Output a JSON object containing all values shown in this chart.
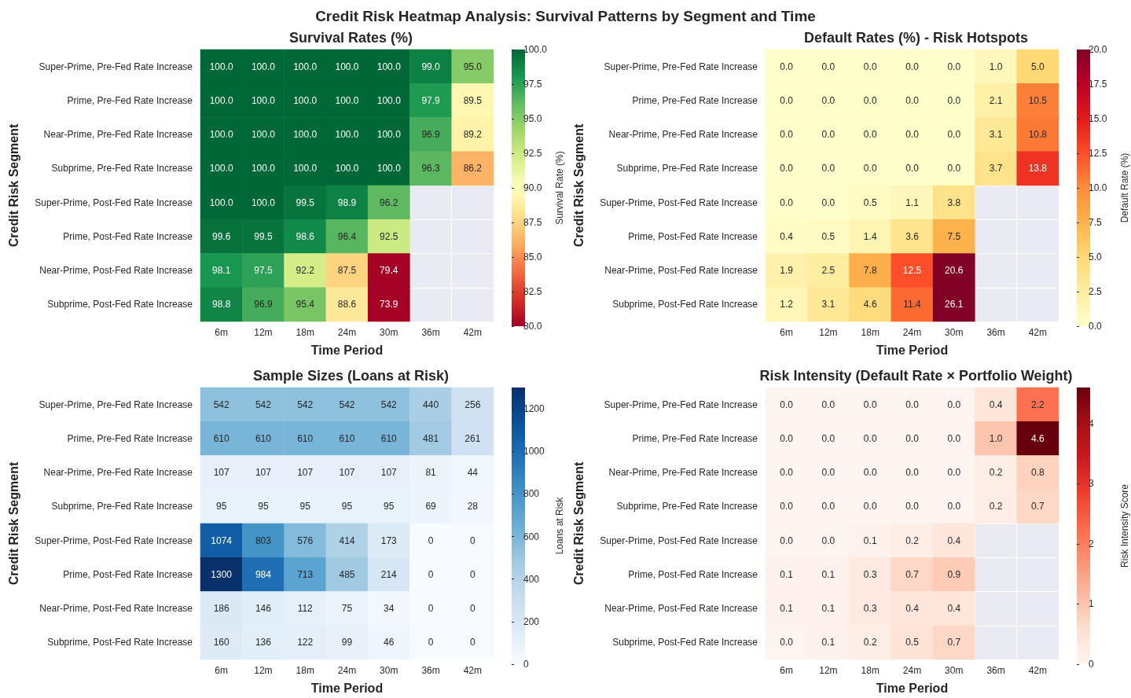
{
  "chart_data": [
    {
      "type": "heatmap",
      "title": "Survival Rates (%)",
      "annotations": [
        "Credit Risk Heatmap Analysis: Survival Patterns by Segment and Time"
      ],
      "xlabel": "Time Period",
      "ylabel": "Credit Risk Segment",
      "clabel": "Survival Rate (%)",
      "grid": true,
      "data_labels": true,
      "categories": [
        "6m",
        "12m",
        "18m",
        "24m",
        "30m",
        "36m",
        "42m"
      ],
      "y_categories": [
        "Super-Prime, Pre-Fed Rate Increase",
        "Prime, Pre-Fed Rate Increase",
        "Near-Prime, Pre-Fed Rate Increase",
        "Subprime, Pre-Fed Rate Increase",
        "Super-Prime, Post-Fed Rate Increase",
        "Prime, Post-Fed Rate Increase",
        "Near-Prime, Post-Fed Rate Increase",
        "Subprime, Post-Fed Rate Increase"
      ],
      "cells": [
        [
          100,
          100,
          100,
          100,
          100,
          99.0,
          95.0
        ],
        [
          100,
          100,
          100,
          100,
          100,
          97.9,
          89.5
        ],
        [
          100,
          100,
          100,
          100,
          100,
          96.9,
          89.2
        ],
        [
          100,
          100,
          100,
          100,
          100,
          96.3,
          86.2
        ],
        [
          100,
          100,
          99.5,
          98.9,
          96.2,
          null,
          null
        ],
        [
          99.6,
          99.5,
          98.6,
          96.4,
          92.5,
          null,
          null
        ],
        [
          98.1,
          97.5,
          92.2,
          87.5,
          79.4,
          null,
          null
        ],
        [
          98.8,
          96.9,
          95.4,
          88.6,
          73.9,
          null,
          null
        ]
      ],
      "cell_labels": [
        [
          "100.0",
          "100.0",
          "100.0",
          "100.0",
          "100.0",
          "99.0",
          "95.0"
        ],
        [
          "100.0",
          "100.0",
          "100.0",
          "100.0",
          "100.0",
          "97.9",
          "89.5"
        ],
        [
          "100.0",
          "100.0",
          "100.0",
          "100.0",
          "100.0",
          "96.9",
          "89.2"
        ],
        [
          "100.0",
          "100.0",
          "100.0",
          "100.0",
          "100.0",
          "96.3",
          "86.2"
        ],
        [
          "100.0",
          "100.0",
          "99.5",
          "98.9",
          "96.2",
          null,
          null
        ],
        [
          "99.6",
          "99.5",
          "98.6",
          "96.4",
          "92.5",
          null,
          null
        ],
        [
          "98.1",
          "97.5",
          "92.2",
          "87.5",
          "79.4",
          null,
          null
        ],
        [
          "98.8",
          "96.9",
          "95.4",
          "88.6",
          "73.9",
          null,
          null
        ]
      ],
      "clim": [
        80,
        100
      ],
      "cticks": [
        {
          "value": 80,
          "label": "80.0"
        },
        {
          "value": 82.5,
          "label": "82.5"
        },
        {
          "value": 85,
          "label": "85.0"
        },
        {
          "value": 87.5,
          "label": "87.5"
        },
        {
          "value": 90,
          "label": "90.0"
        },
        {
          "value": 92.5,
          "label": "92.5"
        },
        {
          "value": 95,
          "label": "95.0"
        },
        {
          "value": 97.5,
          "label": "97.5"
        },
        {
          "value": 100,
          "label": "100.0"
        }
      ]
    },
    {
      "type": "heatmap",
      "title": "Default Rates (%) - Risk Hotspots",
      "xlabel": "Time Period",
      "ylabel": "Credit Risk Segment",
      "clabel": "Default Rate (%)",
      "grid": true,
      "data_labels": true,
      "categories": [
        "6m",
        "12m",
        "18m",
        "24m",
        "30m",
        "36m",
        "42m"
      ],
      "y_categories": [
        "Super-Prime, Pre-Fed Rate Increase",
        "Prime, Pre-Fed Rate Increase",
        "Near-Prime, Pre-Fed Rate Increase",
        "Subprime, Pre-Fed Rate Increase",
        "Super-Prime, Post-Fed Rate Increase",
        "Prime, Post-Fed Rate Increase",
        "Near-Prime, Post-Fed Rate Increase",
        "Subprime, Post-Fed Rate Increase"
      ],
      "cells": [
        [
          0,
          0,
          0,
          0,
          0,
          1.0,
          5.0
        ],
        [
          0,
          0,
          0,
          0,
          0,
          2.1,
          10.5
        ],
        [
          0,
          0,
          0,
          0,
          0,
          3.1,
          10.8
        ],
        [
          0,
          0,
          0,
          0,
          0,
          3.7,
          13.8
        ],
        [
          0,
          0,
          0.5,
          1.1,
          3.8,
          null,
          null
        ],
        [
          0.4,
          0.5,
          1.4,
          3.6,
          7.5,
          null,
          null
        ],
        [
          1.9,
          2.5,
          7.8,
          12.5,
          20.6,
          null,
          null
        ],
        [
          1.2,
          3.1,
          4.6,
          11.4,
          26.1,
          null,
          null
        ]
      ],
      "cell_labels": [
        [
          "0.0",
          "0.0",
          "0.0",
          "0.0",
          "0.0",
          "1.0",
          "5.0"
        ],
        [
          "0.0",
          "0.0",
          "0.0",
          "0.0",
          "0.0",
          "2.1",
          "10.5"
        ],
        [
          "0.0",
          "0.0",
          "0.0",
          "0.0",
          "0.0",
          "3.1",
          "10.8"
        ],
        [
          "0.0",
          "0.0",
          "0.0",
          "0.0",
          "0.0",
          "3.7",
          "13.8"
        ],
        [
          "0.0",
          "0.0",
          "0.5",
          "1.1",
          "3.8",
          null,
          null
        ],
        [
          "0.4",
          "0.5",
          "1.4",
          "3.6",
          "7.5",
          null,
          null
        ],
        [
          "1.9",
          "2.5",
          "7.8",
          "12.5",
          "20.6",
          null,
          null
        ],
        [
          "1.2",
          "3.1",
          "4.6",
          "11.4",
          "26.1",
          null,
          null
        ]
      ],
      "clim": [
        0,
        20
      ],
      "cticks": [
        {
          "value": 0,
          "label": "0.0"
        },
        {
          "value": 2.5,
          "label": "2.5"
        },
        {
          "value": 5,
          "label": "5.0"
        },
        {
          "value": 7.5,
          "label": "7.5"
        },
        {
          "value": 10,
          "label": "10.0"
        },
        {
          "value": 12.5,
          "label": "12.5"
        },
        {
          "value": 15,
          "label": "15.0"
        },
        {
          "value": 17.5,
          "label": "17.5"
        },
        {
          "value": 20,
          "label": "20.0"
        }
      ]
    },
    {
      "type": "heatmap",
      "title": "Sample Sizes (Loans at Risk)",
      "xlabel": "Time Period",
      "ylabel": "Credit Risk Segment",
      "clabel": "Loans at Risk",
      "grid": true,
      "data_labels": true,
      "categories": [
        "6m",
        "12m",
        "18m",
        "24m",
        "30m",
        "36m",
        "42m"
      ],
      "y_categories": [
        "Super-Prime, Pre-Fed Rate Increase",
        "Prime, Pre-Fed Rate Increase",
        "Near-Prime, Pre-Fed Rate Increase",
        "Subprime, Pre-Fed Rate Increase",
        "Super-Prime, Post-Fed Rate Increase",
        "Prime, Post-Fed Rate Increase",
        "Near-Prime, Post-Fed Rate Increase",
        "Subprime, Post-Fed Rate Increase"
      ],
      "cells": [
        [
          542,
          542,
          542,
          542,
          542,
          440,
          256
        ],
        [
          610,
          610,
          610,
          610,
          610,
          481,
          261
        ],
        [
          107,
          107,
          107,
          107,
          107,
          81,
          44
        ],
        [
          95,
          95,
          95,
          95,
          95,
          69,
          28
        ],
        [
          1074,
          803,
          576,
          414,
          173,
          0,
          0
        ],
        [
          1300,
          984,
          713,
          485,
          214,
          0,
          0
        ],
        [
          186,
          146,
          112,
          75,
          34,
          0,
          0
        ],
        [
          160,
          136,
          122,
          99,
          46,
          0,
          0
        ]
      ],
      "clim": [
        0,
        1300
      ],
      "cticks": [
        0,
        200,
        400,
        600,
        800,
        1000,
        1200
      ]
    },
    {
      "type": "heatmap",
      "title": "Risk Intensity (Default Rate × Portfolio Weight)",
      "xlabel": "Time Period",
      "ylabel": "Credit Risk Segment",
      "clabel": "Risk Intensity Score",
      "grid": true,
      "data_labels": true,
      "categories": [
        "6m",
        "12m",
        "18m",
        "24m",
        "30m",
        "36m",
        "42m"
      ],
      "y_categories": [
        "Super-Prime, Pre-Fed Rate Increase",
        "Prime, Pre-Fed Rate Increase",
        "Near-Prime, Pre-Fed Rate Increase",
        "Subprime, Pre-Fed Rate Increase",
        "Super-Prime, Post-Fed Rate Increase",
        "Prime, Post-Fed Rate Increase",
        "Near-Prime, Post-Fed Rate Increase",
        "Subprime, Post-Fed Rate Increase"
      ],
      "cells": [
        [
          0,
          0,
          0,
          0,
          0,
          0.4,
          2.2
        ],
        [
          0,
          0,
          0,
          0,
          0,
          1.0,
          4.6
        ],
        [
          0,
          0,
          0,
          0,
          0,
          0.2,
          0.8
        ],
        [
          0,
          0,
          0,
          0,
          0,
          0.2,
          0.7
        ],
        [
          0,
          0,
          0.1,
          0.2,
          0.4,
          null,
          null
        ],
        [
          0.1,
          0.1,
          0.3,
          0.7,
          0.9,
          null,
          null
        ],
        [
          0.1,
          0.1,
          0.3,
          0.4,
          0.4,
          null,
          null
        ],
        [
          0,
          0.1,
          0.2,
          0.5,
          0.7,
          null,
          null
        ]
      ],
      "cell_labels": [
        [
          "0.0",
          "0.0",
          "0.0",
          "0.0",
          "0.0",
          "0.4",
          "2.2"
        ],
        [
          "0.0",
          "0.0",
          "0.0",
          "0.0",
          "0.0",
          "1.0",
          "4.6"
        ],
        [
          "0.0",
          "0.0",
          "0.0",
          "0.0",
          "0.0",
          "0.2",
          "0.8"
        ],
        [
          "0.0",
          "0.0",
          "0.0",
          "0.0",
          "0.0",
          "0.2",
          "0.7"
        ],
        [
          "0.0",
          "0.0",
          "0.1",
          "0.2",
          "0.4",
          null,
          null
        ],
        [
          "0.1",
          "0.1",
          "0.3",
          "0.7",
          "0.9",
          null,
          null
        ],
        [
          "0.1",
          "0.1",
          "0.3",
          "0.4",
          "0.4",
          null,
          null
        ],
        [
          "0.0",
          "0.1",
          "0.2",
          "0.5",
          "0.7",
          null,
          null
        ]
      ],
      "clim": [
        0,
        4.6
      ],
      "cticks": [
        0,
        1,
        2,
        3,
        4
      ]
    }
  ]
}
